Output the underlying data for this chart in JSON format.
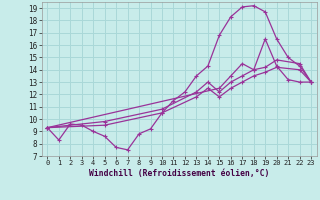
{
  "title": "",
  "xlabel": "Windchill (Refroidissement éolien,°C)",
  "bg_color": "#c8ecea",
  "grid_color": "#aad8d8",
  "line_color": "#993399",
  "xlim": [
    -0.5,
    23.5
  ],
  "ylim": [
    7.0,
    19.5
  ],
  "xticks": [
    0,
    1,
    2,
    3,
    4,
    5,
    6,
    7,
    8,
    9,
    10,
    11,
    12,
    13,
    14,
    15,
    16,
    17,
    18,
    19,
    20,
    21,
    22,
    23
  ],
  "yticks": [
    7,
    8,
    9,
    10,
    11,
    12,
    13,
    14,
    15,
    16,
    17,
    18,
    19
  ],
  "outer_x": [
    0,
    1,
    2,
    3,
    4,
    5,
    6,
    7,
    8,
    9,
    10,
    11,
    12,
    13,
    14,
    15,
    16,
    17,
    18,
    19,
    20,
    21,
    22,
    23
  ],
  "outer_y": [
    9.3,
    8.3,
    9.6,
    9.5,
    9.0,
    8.6,
    7.7,
    7.5,
    8.8,
    9.2,
    10.5,
    11.5,
    12.2,
    13.5,
    14.3,
    16.8,
    18.3,
    19.1,
    19.2,
    18.7,
    16.5,
    15.0,
    14.3,
    13.0
  ],
  "return_x": [
    0,
    15,
    16,
    17,
    18,
    19,
    20,
    21,
    22,
    23
  ],
  "return_y": [
    9.3,
    12.5,
    13.5,
    14.5,
    14.0,
    16.5,
    14.3,
    13.2,
    13.0,
    13.0
  ],
  "inner1_x": [
    0,
    5,
    10,
    13,
    14,
    15,
    16,
    17,
    18,
    19,
    20,
    22,
    23
  ],
  "inner1_y": [
    9.3,
    9.5,
    10.5,
    11.8,
    12.5,
    11.8,
    12.5,
    13.0,
    13.5,
    13.8,
    14.2,
    14.0,
    13.0
  ],
  "inner2_x": [
    0,
    5,
    10,
    13,
    14,
    15,
    16,
    17,
    18,
    19,
    20,
    22,
    23
  ],
  "inner2_y": [
    9.3,
    9.8,
    10.8,
    12.2,
    13.0,
    12.2,
    13.0,
    13.5,
    14.0,
    14.2,
    14.8,
    14.5,
    13.0
  ]
}
